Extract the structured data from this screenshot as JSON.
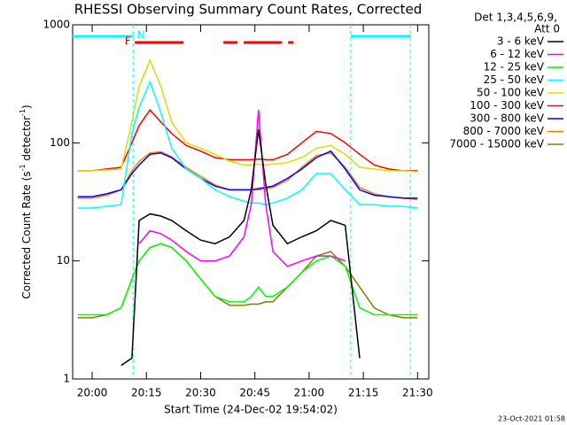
{
  "chart_data": {
    "type": "line",
    "title": "RHESSI Observing Summary Count Rates, Corrected",
    "x_label": "Start Time (24-Dec-02 19:54:02)",
    "y_label_parts": [
      "Corrected Count Rate (s",
      "-1",
      " detector",
      "-1",
      ")"
    ],
    "legend_header": [
      "Det 1,3,4,5,6,9,",
      "Att 0"
    ],
    "timestamp": "23-Oct-2021 01:58",
    "log_y": true,
    "xlim": [
      -5.4,
      93.1
    ],
    "ylim": [
      1,
      1000
    ],
    "yticks": [
      1,
      10,
      100,
      1000
    ],
    "xticks": [
      {
        "value": 0,
        "label": "20:00"
      },
      {
        "value": 15,
        "label": "20:15"
      },
      {
        "value": 30,
        "label": "20:30"
      },
      {
        "value": 45,
        "label": "20:45"
      },
      {
        "value": 60,
        "label": "21:00"
      },
      {
        "value": 75,
        "label": "21:15"
      },
      {
        "value": 90,
        "label": "21:30"
      }
    ],
    "night": {
      "label": "N",
      "color": "#00ffff",
      "intervals": [
        [
          -5.4,
          11.3
        ],
        [
          71.5,
          88
        ]
      ]
    },
    "flare": {
      "label": "F",
      "color": "#ff0000",
      "intervals": [
        [
          11.8,
          25.2
        ],
        [
          36.3,
          40.2
        ],
        [
          41.9,
          52.5
        ],
        [
          54.2,
          55.6
        ]
      ]
    },
    "x": [
      -4,
      0,
      4,
      8,
      11,
      13,
      16,
      19,
      22,
      26,
      30,
      34,
      38,
      42,
      44,
      46,
      48,
      50,
      54,
      58,
      62,
      66,
      70,
      74,
      78,
      82,
      86,
      90
    ],
    "series": [
      {
        "name": "3 - 6 keV",
        "color": "#000000",
        "values": [
          null,
          null,
          null,
          1.3,
          1.5,
          22,
          25,
          24,
          22,
          18,
          15,
          14,
          16,
          22,
          40,
          130,
          45,
          20,
          14,
          16,
          18,
          22,
          20,
          1.5,
          null,
          null,
          null,
          null
        ]
      },
      {
        "name": "6 - 12 keV",
        "color": "#ff00ff",
        "values": [
          null,
          null,
          null,
          null,
          null,
          14,
          18,
          17,
          15,
          12,
          10,
          10,
          11,
          16,
          30,
          190,
          30,
          12,
          9,
          10,
          11,
          11,
          10,
          null,
          null,
          null,
          null,
          null
        ]
      },
      {
        "name": "12 - 25 keV",
        "color": "#00ff00",
        "values": [
          3.5,
          3.5,
          3.5,
          4,
          7,
          10,
          13,
          14,
          13,
          10,
          7,
          5,
          4.5,
          4.5,
          5,
          6,
          5,
          5,
          6,
          8,
          10,
          11,
          9,
          4,
          3.5,
          3.5,
          3.5,
          3.5
        ]
      },
      {
        "name": "25 - 50 keV",
        "color": "#00ffff",
        "values": [
          28,
          28,
          29,
          30,
          120,
          200,
          330,
          180,
          90,
          60,
          50,
          40,
          35,
          32,
          31,
          31,
          30,
          31,
          34,
          40,
          55,
          55,
          40,
          30,
          30,
          29,
          29,
          28
        ]
      },
      {
        "name": "50 - 100 keV",
        "color": "#dddd00",
        "values": [
          58,
          58,
          59,
          60,
          150,
          300,
          500,
          300,
          150,
          100,
          90,
          80,
          70,
          65,
          65,
          66,
          65,
          66,
          68,
          75,
          90,
          95,
          80,
          62,
          60,
          58,
          58,
          57
        ]
      },
      {
        "name": "100 - 300 keV",
        "color": "#ff0000",
        "values": [
          58,
          58,
          60,
          62,
          100,
          140,
          190,
          150,
          120,
          95,
          85,
          75,
          72,
          72,
          72,
          73,
          72,
          72,
          80,
          100,
          125,
          120,
          100,
          80,
          65,
          60,
          58,
          58
        ]
      },
      {
        "name": "300 - 800 keV",
        "color": "#0000ff",
        "values": [
          35,
          35,
          37,
          40,
          55,
          65,
          80,
          82,
          75,
          60,
          50,
          43,
          40,
          40,
          40,
          41,
          42,
          43,
          50,
          60,
          75,
          85,
          60,
          40,
          36,
          35,
          34,
          34
        ]
      },
      {
        "name": "800 - 7000 keV",
        "color": "#ff8000",
        "values": [
          34,
          34,
          36,
          40,
          58,
          70,
          82,
          84,
          76,
          62,
          52,
          44,
          40,
          40,
          40,
          40,
          41,
          42,
          48,
          62,
          78,
          82,
          62,
          42,
          37,
          35,
          34,
          33
        ]
      },
      {
        "name": "7000 - 15000 keV",
        "color": "#808000",
        "values": [
          3.3,
          3.3,
          3.5,
          4,
          7,
          10,
          13,
          14,
          13,
          10,
          7,
          5,
          4.2,
          4.2,
          4.3,
          4.3,
          4.5,
          4.5,
          6,
          8,
          11,
          12,
          9,
          6,
          4,
          3.5,
          3.3,
          3.3
        ]
      }
    ]
  }
}
